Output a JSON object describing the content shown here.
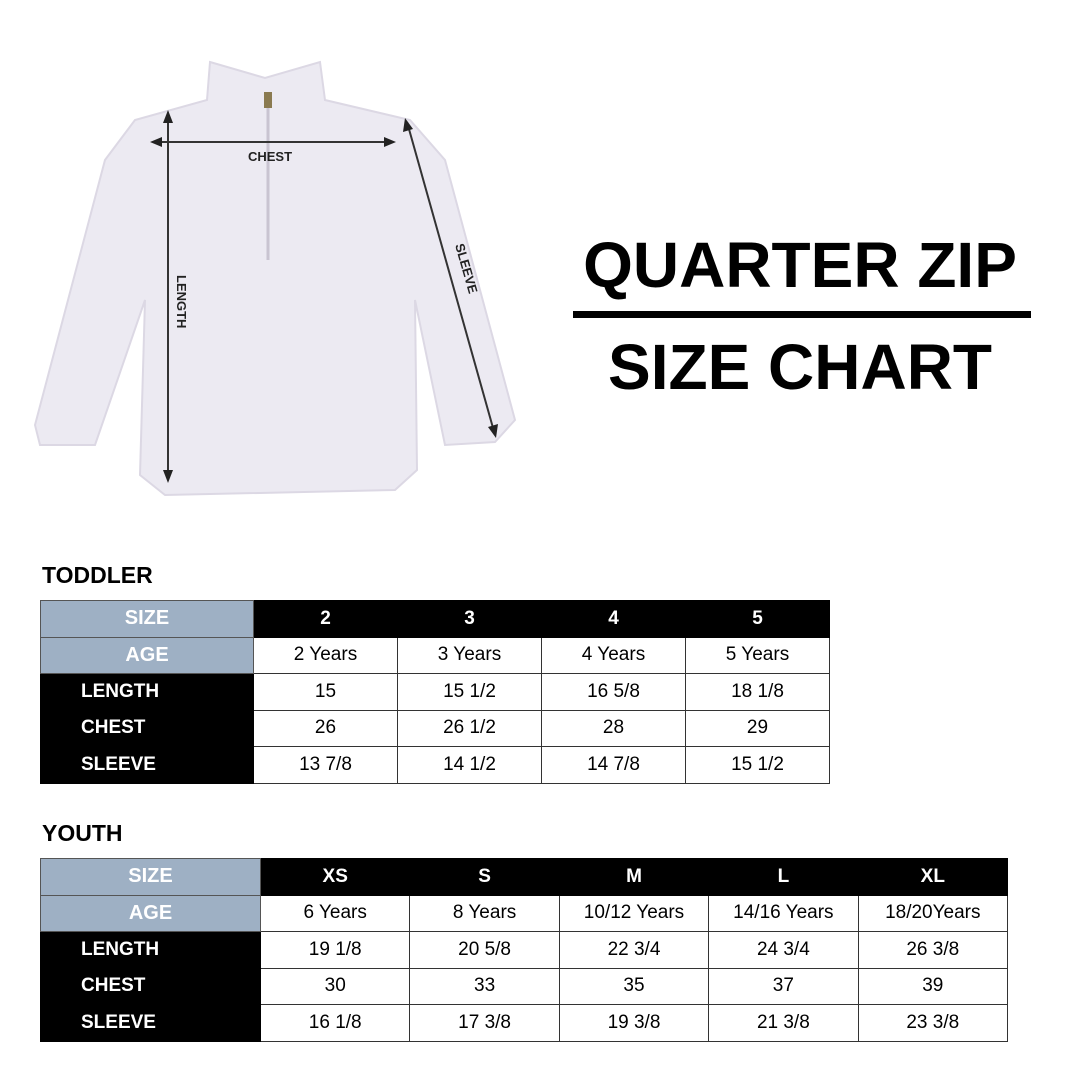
{
  "title_line1": "QUARTER ZIP",
  "title_line2": "SIZE CHART",
  "diagram_labels": {
    "chest": "CHEST",
    "length": "LENGTH",
    "sleeve": "SLEEVE"
  },
  "colors": {
    "header_blue_gray": "#9eb0c4",
    "header_black": "#000000"
  },
  "toddler": {
    "heading": "TODDLER",
    "size_label": "SIZE",
    "age_label": "AGE",
    "sizes": [
      "2",
      "3",
      "4",
      "5"
    ],
    "ages": [
      "2 Years",
      "3 Years",
      "4 Years",
      "5 Years"
    ],
    "rows": [
      {
        "label": "LENGTH",
        "values": [
          "15",
          "15 1/2",
          "16 5/8",
          "18 1/8"
        ]
      },
      {
        "label": "CHEST",
        "values": [
          "26",
          "26 1/2",
          "28",
          "29"
        ]
      },
      {
        "label": "SLEEVE",
        "values": [
          "13 7/8",
          "14 1/2",
          "14 7/8",
          "15 1/2"
        ]
      }
    ]
  },
  "youth": {
    "heading": "YOUTH",
    "size_label": "SIZE",
    "age_label": "AGE",
    "sizes": [
      "XS",
      "S",
      "M",
      "L",
      "XL"
    ],
    "ages": [
      "6 Years",
      "8 Years",
      "10/12 Years",
      "14/16 Years",
      "18/20Years"
    ],
    "rows": [
      {
        "label": "LENGTH",
        "values": [
          "19 1/8",
          "20 5/8",
          "22 3/4",
          "24 3/4",
          "26 3/8"
        ]
      },
      {
        "label": "CHEST",
        "values": [
          "30",
          "33",
          "35",
          "37",
          "39"
        ]
      },
      {
        "label": "SLEEVE",
        "values": [
          "16 1/8",
          "17 3/8",
          "19 3/8",
          "21 3/8",
          "23 3/8"
        ]
      }
    ]
  }
}
